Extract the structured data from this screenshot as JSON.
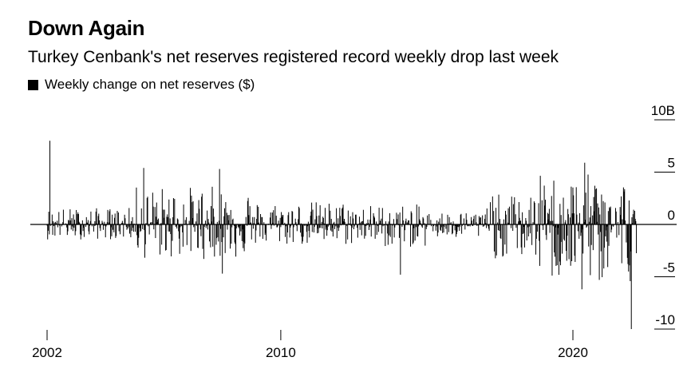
{
  "title": "Down Again",
  "subtitle": "Turkey Cenbank's net reserves registered record weekly drop last week",
  "legend": {
    "label": "Weekly change on net reserves ($)",
    "color": "#000000"
  },
  "chart_data": {
    "type": "bar",
    "title": "Down Again",
    "subtitle": "Turkey Cenbank's net reserves registered record weekly drop last week",
    "series": [
      {
        "name": "Weekly change on net reserves ($)",
        "color": "#000000"
      }
    ],
    "x_range": [
      2002,
      2022.2
    ],
    "ylim": [
      -10,
      10
    ],
    "y_unit": "B",
    "y_ticks": [
      {
        "value": 10,
        "label": "10B"
      },
      {
        "value": 5,
        "label": "5"
      },
      {
        "value": 0,
        "label": "0"
      },
      {
        "value": -5,
        "label": "-5"
      },
      {
        "value": -10,
        "label": "-10"
      }
    ],
    "x_ticks": [
      {
        "value": 2002,
        "label": "2002"
      },
      {
        "value": 2010,
        "label": "2010"
      },
      {
        "value": 2020,
        "label": "2020"
      }
    ],
    "y_axis_position": "right",
    "grid": false,
    "legend_position": "top-left",
    "notable_points": [
      {
        "x": 2002.1,
        "y": 8.0
      },
      {
        "x": 2005.3,
        "y": 5.4
      },
      {
        "x": 2007.9,
        "y": 5.3
      },
      {
        "x": 2008.0,
        "y": -4.7
      },
      {
        "x": 2014.1,
        "y": -4.8
      },
      {
        "x": 2020.3,
        "y": -6.2
      },
      {
        "x": 2020.4,
        "y": 5.9
      },
      {
        "x": 2020.9,
        "y": -5.3
      },
      {
        "x": 2021.9,
        "y": -4.5
      },
      {
        "x": 2022.0,
        "y": -10.0
      }
    ],
    "segments": [
      {
        "from": 2002.0,
        "to": 2005.0,
        "typical": 1.0
      },
      {
        "from": 2005.0,
        "to": 2009.0,
        "typical": 2.3
      },
      {
        "from": 2009.0,
        "to": 2012.5,
        "typical": 1.4
      },
      {
        "from": 2012.5,
        "to": 2015.0,
        "typical": 1.2
      },
      {
        "from": 2015.0,
        "to": 2017.0,
        "typical": 0.8
      },
      {
        "from": 2017.0,
        "to": 2018.8,
        "typical": 1.8
      },
      {
        "from": 2018.8,
        "to": 2022.0,
        "typical": 3.0
      }
    ]
  }
}
